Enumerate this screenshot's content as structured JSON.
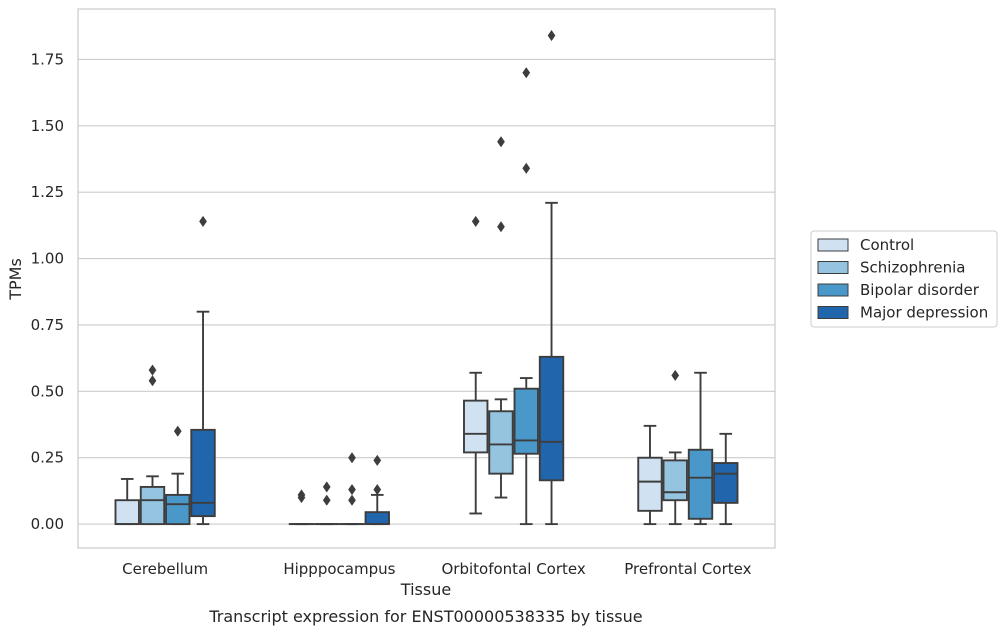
{
  "caption": "Transcript expression for ENST00000538335 by tissue",
  "chart_data": {
    "type": "box",
    "xlabel": "Tissue",
    "ylabel": "TPMs",
    "ylim": [
      -0.09,
      1.94
    ],
    "yticks": [
      0.0,
      0.25,
      0.5,
      0.75,
      1.0,
      1.25,
      1.5,
      1.75
    ],
    "ytick_labels": [
      "0.00",
      "0.25",
      "0.50",
      "0.75",
      "1.00",
      "1.25",
      "1.50",
      "1.75"
    ],
    "grid": true,
    "legend_position": "right",
    "categories": [
      "Cerebellum",
      "Hipppocampus",
      "Orbitofontal Cortex",
      "Prefrontal Cortex"
    ],
    "series": [
      {
        "name": "Control",
        "color": "#d0e1f2",
        "boxes": [
          {
            "q1": 0.0,
            "median": 0.0,
            "q3": 0.09,
            "whislo": 0.0,
            "whishi": 0.17,
            "fliers": []
          },
          {
            "q1": 0.0,
            "median": 0.0,
            "q3": 0.0,
            "whislo": 0.0,
            "whishi": 0.0,
            "fliers": [
              0.1,
              0.11
            ]
          },
          {
            "q1": 0.27,
            "median": 0.34,
            "q3": 0.465,
            "whislo": 0.04,
            "whishi": 0.57,
            "fliers": [
              1.14
            ]
          },
          {
            "q1": 0.05,
            "median": 0.16,
            "q3": 0.25,
            "whislo": 0.0,
            "whishi": 0.37,
            "fliers": []
          }
        ]
      },
      {
        "name": "Schizophrenia",
        "color": "#94c4df",
        "boxes": [
          {
            "q1": 0.0,
            "median": 0.09,
            "q3": 0.14,
            "whislo": 0.0,
            "whishi": 0.18,
            "fliers": [
              0.54,
              0.58
            ]
          },
          {
            "q1": 0.0,
            "median": 0.0,
            "q3": 0.0,
            "whislo": 0.0,
            "whishi": 0.0,
            "fliers": [
              0.09,
              0.14
            ]
          },
          {
            "q1": 0.19,
            "median": 0.3,
            "q3": 0.425,
            "whislo": 0.1,
            "whishi": 0.47,
            "fliers": [
              1.12,
              1.44
            ]
          },
          {
            "q1": 0.09,
            "median": 0.12,
            "q3": 0.24,
            "whislo": 0.0,
            "whishi": 0.27,
            "fliers": [
              0.56
            ]
          }
        ]
      },
      {
        "name": "Bipolar disorder",
        "color": "#4a98c9",
        "boxes": [
          {
            "q1": 0.0,
            "median": 0.075,
            "q3": 0.11,
            "whislo": 0.0,
            "whishi": 0.19,
            "fliers": [
              0.35
            ]
          },
          {
            "q1": 0.0,
            "median": 0.0,
            "q3": 0.0,
            "whislo": 0.0,
            "whishi": 0.0,
            "fliers": [
              0.09,
              0.13,
              0.25
            ]
          },
          {
            "q1": 0.265,
            "median": 0.315,
            "q3": 0.51,
            "whislo": 0.0,
            "whishi": 0.55,
            "fliers": [
              1.34,
              1.7
            ]
          },
          {
            "q1": 0.02,
            "median": 0.175,
            "q3": 0.28,
            "whislo": 0.0,
            "whishi": 0.57,
            "fliers": []
          }
        ]
      },
      {
        "name": "Major depression",
        "color": "#2166ac",
        "boxes": [
          {
            "q1": 0.03,
            "median": 0.08,
            "q3": 0.355,
            "whislo": 0.0,
            "whishi": 0.8,
            "fliers": [
              1.14
            ]
          },
          {
            "q1": 0.0,
            "median": 0.0,
            "q3": 0.045,
            "whislo": 0.0,
            "whishi": 0.11,
            "fliers": [
              0.13,
              0.24
            ]
          },
          {
            "q1": 0.165,
            "median": 0.31,
            "q3": 0.63,
            "whislo": 0.0,
            "whishi": 1.21,
            "fliers": [
              1.84
            ]
          },
          {
            "q1": 0.08,
            "median": 0.19,
            "q3": 0.23,
            "whislo": 0.0,
            "whishi": 0.34,
            "fliers": []
          }
        ]
      }
    ]
  }
}
